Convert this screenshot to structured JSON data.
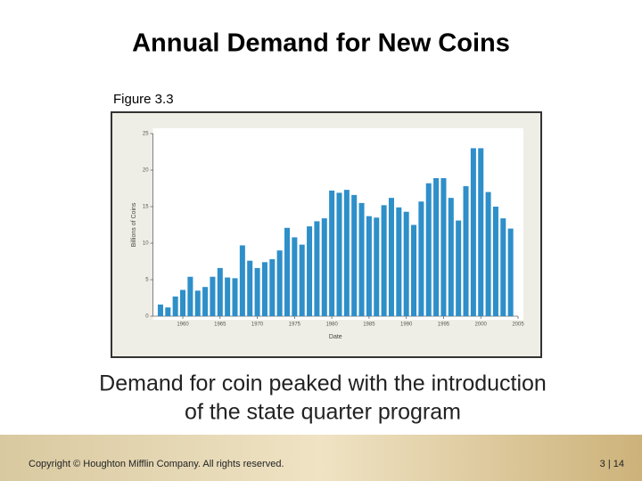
{
  "slide_title": "Annual Demand for New Coins",
  "figure_label": "Figure 3.3",
  "caption_lines": [
    "Demand for coin peaked with the introduction",
    "of the state quarter program"
  ],
  "footer": {
    "copyright": "Copyright © Houghton Mifflin Company.  All rights reserved.",
    "page": "3 | 14"
  },
  "chart_data": {
    "type": "bar",
    "x_label": "Date",
    "y_label": "Billions of Coins",
    "x": [
      1957,
      1958,
      1959,
      1960,
      1961,
      1962,
      1963,
      1964,
      1965,
      1966,
      1967,
      1968,
      1969,
      1970,
      1971,
      1972,
      1973,
      1974,
      1975,
      1976,
      1977,
      1978,
      1979,
      1980,
      1981,
      1982,
      1983,
      1984,
      1985,
      1986,
      1987,
      1988,
      1989,
      1990,
      1991,
      1992,
      1993,
      1994,
      1995,
      1996,
      1997,
      1998,
      1999,
      2000,
      2001,
      2002,
      2003,
      2004
    ],
    "values": [
      1.6,
      1.2,
      2.7,
      3.6,
      5.4,
      3.5,
      4.0,
      5.4,
      6.6,
      5.3,
      5.2,
      9.7,
      7.6,
      6.6,
      7.4,
      7.8,
      9.0,
      12.1,
      10.8,
      9.8,
      12.3,
      13.0,
      13.4,
      17.2,
      16.9,
      17.3,
      16.6,
      15.5,
      13.7,
      13.5,
      15.2,
      16.2,
      14.9,
      14.3,
      12.5,
      15.7,
      18.2,
      18.9,
      18.9,
      16.2,
      13.1,
      17.8,
      23.0,
      23.0,
      17.0,
      15.0,
      13.4,
      12.0
    ],
    "color": "#2e8fc9",
    "xlim": [
      1956,
      2005
    ],
    "xticks": [
      1960,
      1965,
      1970,
      1975,
      1980,
      1985,
      1990,
      1995,
      2000,
      2005
    ],
    "ylim": [
      0,
      25
    ],
    "yticks": [
      0,
      5,
      10,
      15,
      20,
      25
    ]
  }
}
